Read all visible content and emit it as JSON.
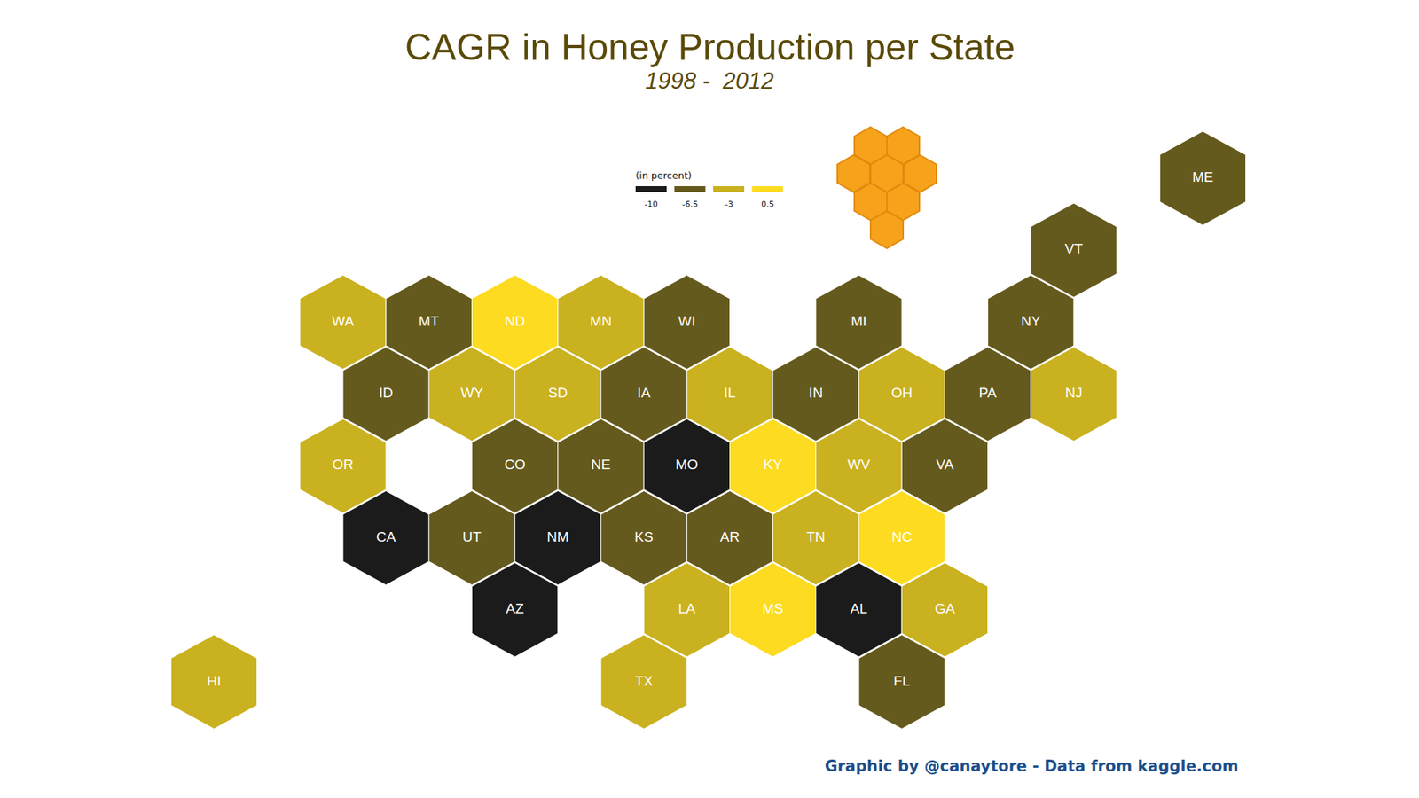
{
  "chart_data": {
    "type": "hexmap",
    "title": "CAGR in Honey Production per State",
    "subtitle": "1998 -  2012",
    "caption": "Graphic by @canaytore - Data from kaggle.com",
    "legend_title": "(in percent)",
    "color_bins": [
      {
        "value": -10,
        "color": "#1b1b1b"
      },
      {
        "value": -6.5,
        "color": "#655a1d"
      },
      {
        "value": -3,
        "color": "#cab11f"
      },
      {
        "value": 0.5,
        "color": "#fddb20"
      }
    ],
    "states": [
      {
        "state": "ME",
        "row": -2,
        "col": 20,
        "value": -6.5
      },
      {
        "state": "VT",
        "row": -1,
        "col": 17,
        "value": -6.5
      },
      {
        "state": "WA",
        "row": 0,
        "col": 0,
        "value": -3
      },
      {
        "state": "MT",
        "row": 0,
        "col": 2,
        "value": -6.5
      },
      {
        "state": "ND",
        "row": 0,
        "col": 4,
        "value": 0.5
      },
      {
        "state": "MN",
        "row": 0,
        "col": 6,
        "value": -3
      },
      {
        "state": "WI",
        "row": 0,
        "col": 8,
        "value": -6.5
      },
      {
        "state": "MI",
        "row": 0,
        "col": 12,
        "value": -6.5
      },
      {
        "state": "NY",
        "row": 0,
        "col": 16,
        "value": -6.5
      },
      {
        "state": "ID",
        "row": 1,
        "col": 1,
        "value": -6.5
      },
      {
        "state": "WY",
        "row": 1,
        "col": 3,
        "value": -3
      },
      {
        "state": "SD",
        "row": 1,
        "col": 5,
        "value": -3
      },
      {
        "state": "IA",
        "row": 1,
        "col": 7,
        "value": -6.5
      },
      {
        "state": "IL",
        "row": 1,
        "col": 9,
        "value": -3
      },
      {
        "state": "IN",
        "row": 1,
        "col": 11,
        "value": -6.5
      },
      {
        "state": "OH",
        "row": 1,
        "col": 13,
        "value": -3
      },
      {
        "state": "PA",
        "row": 1,
        "col": 15,
        "value": -6.5
      },
      {
        "state": "NJ",
        "row": 1,
        "col": 17,
        "value": -3
      },
      {
        "state": "OR",
        "row": 2,
        "col": 0,
        "value": -3
      },
      {
        "state": "CO",
        "row": 2,
        "col": 4,
        "value": -6.5
      },
      {
        "state": "NE",
        "row": 2,
        "col": 6,
        "value": -6.5
      },
      {
        "state": "MO",
        "row": 2,
        "col": 8,
        "value": -10
      },
      {
        "state": "KY",
        "row": 2,
        "col": 10,
        "value": 0.5
      },
      {
        "state": "WV",
        "row": 2,
        "col": 12,
        "value": -3
      },
      {
        "state": "VA",
        "row": 2,
        "col": 14,
        "value": -6.5
      },
      {
        "state": "CA",
        "row": 3,
        "col": 1,
        "value": -10
      },
      {
        "state": "UT",
        "row": 3,
        "col": 3,
        "value": -6.5
      },
      {
        "state": "NM",
        "row": 3,
        "col": 5,
        "value": -10
      },
      {
        "state": "KS",
        "row": 3,
        "col": 7,
        "value": -6.5
      },
      {
        "state": "AR",
        "row": 3,
        "col": 9,
        "value": -6.5
      },
      {
        "state": "TN",
        "row": 3,
        "col": 11,
        "value": -3
      },
      {
        "state": "NC",
        "row": 3,
        "col": 13,
        "value": 0.5
      },
      {
        "state": "AZ",
        "row": 4,
        "col": 4,
        "value": -10
      },
      {
        "state": "LA",
        "row": 4,
        "col": 8,
        "value": -3
      },
      {
        "state": "MS",
        "row": 4,
        "col": 10,
        "value": 0.5
      },
      {
        "state": "AL",
        "row": 4,
        "col": 12,
        "value": -10
      },
      {
        "state": "GA",
        "row": 4,
        "col": 14,
        "value": -3
      },
      {
        "state": "HI",
        "row": 5,
        "col": -3,
        "value": -3
      },
      {
        "state": "TX",
        "row": 5,
        "col": 7,
        "value": -3
      },
      {
        "state": "FL",
        "row": 5,
        "col": 13,
        "value": -6.5
      }
    ]
  }
}
